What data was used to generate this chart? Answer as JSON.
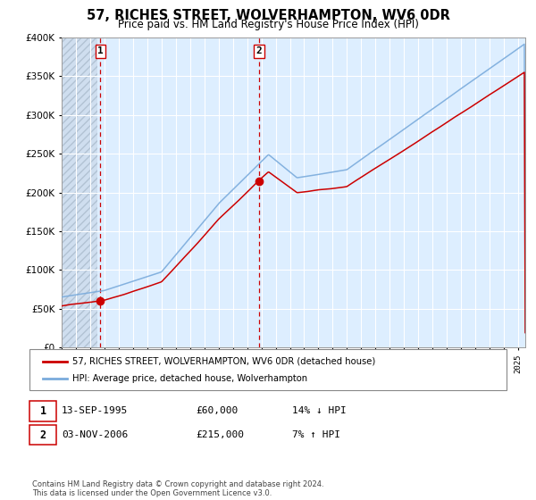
{
  "title": "57, RICHES STREET, WOLVERHAMPTON, WV6 0DR",
  "subtitle": "Price paid vs. HM Land Registry's House Price Index (HPI)",
  "sale1_date_num": 1995.7,
  "sale1_price": 60000,
  "sale1_label": "1",
  "sale1_annotation": "13-SEP-1995",
  "sale1_amount": "£60,000",
  "sale1_hpi": "14% ↓ HPI",
  "sale2_date_num": 2006.84,
  "sale2_price": 215000,
  "sale2_label": "2",
  "sale2_annotation": "03-NOV-2006",
  "sale2_amount": "£215,000",
  "sale2_hpi": "7% ↑ HPI",
  "legend_red": "57, RICHES STREET, WOLVERHAMPTON, WV6 0DR (detached house)",
  "legend_blue": "HPI: Average price, detached house, Wolverhampton",
  "copyright": "Contains HM Land Registry data © Crown copyright and database right 2024.\nThis data is licensed under the Open Government Licence v3.0.",
  "line_color_red": "#cc0000",
  "line_color_blue": "#7aabdc",
  "bg_color": "#ddeeff",
  "grid_color": "#ffffff",
  "vline_color": "#cc0000",
  "ylim": [
    0,
    400000
  ],
  "xmin": 1993.0,
  "xmax": 2025.5
}
